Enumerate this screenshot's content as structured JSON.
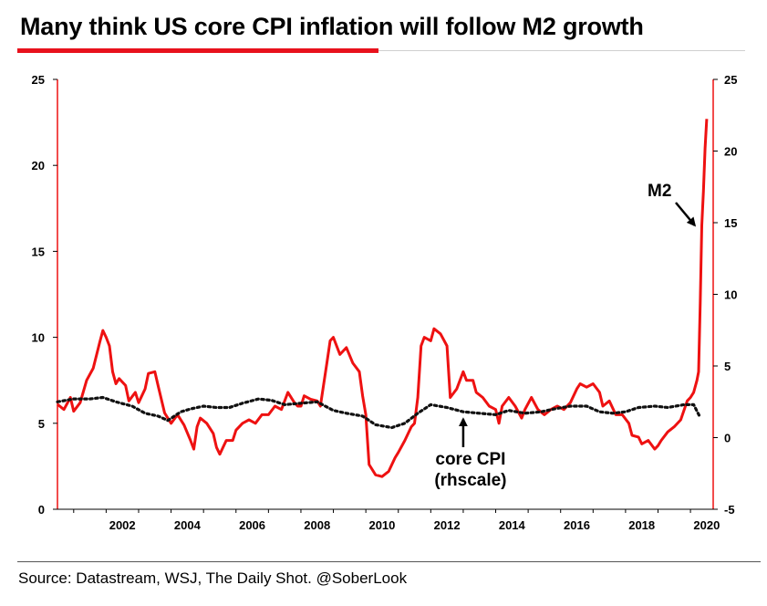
{
  "header": {
    "title": "Many think US core CPI inflation will follow M2 growth"
  },
  "footer": {
    "source": "Source: Datastream, WSJ, The Daily Shot. @SoberLook"
  },
  "colors": {
    "m2": "#ee1111",
    "cpi": "#111111",
    "title_accent": "#e8111c",
    "axis_left": "#ee1111",
    "axis_right": "#ee1111"
  },
  "chart_data": {
    "type": "line",
    "title": "Many think US core CPI inflation will follow M2 growth",
    "x_ticks": [
      "2002",
      "2004",
      "2006",
      "2008",
      "2010",
      "2012",
      "2014",
      "2016",
      "2018",
      "2020"
    ],
    "y_left_ticks": [
      "0",
      "5",
      "10",
      "15",
      "20",
      "25"
    ],
    "y_right_ticks": [
      "-5",
      "0",
      "5",
      "10",
      "15",
      "20",
      "25"
    ],
    "xlim": [
      2000.5,
      2020.7
    ],
    "ylim_left": [
      0,
      25
    ],
    "ylim_right": [
      -5,
      25
    ],
    "grid": false,
    "annotations": [
      {
        "text": "M2",
        "points_to_series": "M2",
        "at": [
          2020.3,
          16.3
        ]
      },
      {
        "line1": "core CPI",
        "line2": "(rhscale)",
        "points_to_series": "core CPI",
        "at": [
          2013.0,
          1.8
        ]
      }
    ],
    "series": [
      {
        "name": "M2",
        "axis": "left",
        "style": "solid",
        "points": [
          [
            2000.5,
            6.1
          ],
          [
            2000.7,
            5.8
          ],
          [
            2000.9,
            6.5
          ],
          [
            2001.0,
            5.7
          ],
          [
            2001.2,
            6.2
          ],
          [
            2001.4,
            7.5
          ],
          [
            2001.6,
            8.2
          ],
          [
            2001.8,
            9.7
          ],
          [
            2001.9,
            10.4
          ],
          [
            2002.0,
            10.0
          ],
          [
            2002.1,
            9.5
          ],
          [
            2002.2,
            8.0
          ],
          [
            2002.3,
            7.3
          ],
          [
            2002.4,
            7.6
          ],
          [
            2002.6,
            7.2
          ],
          [
            2002.7,
            6.3
          ],
          [
            2002.9,
            6.8
          ],
          [
            2003.0,
            6.2
          ],
          [
            2003.2,
            7.0
          ],
          [
            2003.3,
            7.9
          ],
          [
            2003.5,
            8.0
          ],
          [
            2003.6,
            7.2
          ],
          [
            2003.8,
            5.6
          ],
          [
            2004.0,
            5.0
          ],
          [
            2004.2,
            5.5
          ],
          [
            2004.4,
            4.9
          ],
          [
            2004.6,
            4.0
          ],
          [
            2004.7,
            3.5
          ],
          [
            2004.8,
            4.8
          ],
          [
            2004.9,
            5.3
          ],
          [
            2005.1,
            5.0
          ],
          [
            2005.3,
            4.4
          ],
          [
            2005.4,
            3.6
          ],
          [
            2005.5,
            3.2
          ],
          [
            2005.6,
            3.6
          ],
          [
            2005.7,
            4.0
          ],
          [
            2005.9,
            4.0
          ],
          [
            2006.0,
            4.6
          ],
          [
            2006.2,
            5.0
          ],
          [
            2006.4,
            5.2
          ],
          [
            2006.6,
            5.0
          ],
          [
            2006.8,
            5.5
          ],
          [
            2007.0,
            5.5
          ],
          [
            2007.2,
            6.0
          ],
          [
            2007.4,
            5.8
          ],
          [
            2007.6,
            6.8
          ],
          [
            2007.8,
            6.2
          ],
          [
            2007.9,
            6.0
          ],
          [
            2008.0,
            6.0
          ],
          [
            2008.1,
            6.6
          ],
          [
            2008.3,
            6.4
          ],
          [
            2008.5,
            6.3
          ],
          [
            2008.6,
            6.0
          ],
          [
            2008.8,
            8.5
          ],
          [
            2008.9,
            9.8
          ],
          [
            2009.0,
            10.0
          ],
          [
            2009.2,
            9.0
          ],
          [
            2009.4,
            9.4
          ],
          [
            2009.6,
            8.5
          ],
          [
            2009.8,
            8.0
          ],
          [
            2009.9,
            6.6
          ],
          [
            2010.0,
            5.5
          ],
          [
            2010.1,
            2.6
          ],
          [
            2010.3,
            2.0
          ],
          [
            2010.5,
            1.9
          ],
          [
            2010.7,
            2.2
          ],
          [
            2010.9,
            3.0
          ],
          [
            2011.0,
            3.3
          ],
          [
            2011.2,
            4.0
          ],
          [
            2011.4,
            4.8
          ],
          [
            2011.5,
            5.0
          ],
          [
            2011.6,
            6.5
          ],
          [
            2011.7,
            9.5
          ],
          [
            2011.8,
            10.0
          ],
          [
            2012.0,
            9.8
          ],
          [
            2012.1,
            10.5
          ],
          [
            2012.3,
            10.2
          ],
          [
            2012.5,
            9.5
          ],
          [
            2012.6,
            6.5
          ],
          [
            2012.8,
            7.0
          ],
          [
            2013.0,
            8.0
          ],
          [
            2013.1,
            7.5
          ],
          [
            2013.3,
            7.5
          ],
          [
            2013.4,
            6.8
          ],
          [
            2013.6,
            6.5
          ],
          [
            2013.8,
            6.0
          ],
          [
            2014.0,
            5.8
          ],
          [
            2014.1,
            5.0
          ],
          [
            2014.2,
            6.0
          ],
          [
            2014.4,
            6.5
          ],
          [
            2014.6,
            6.0
          ],
          [
            2014.8,
            5.3
          ],
          [
            2014.9,
            5.8
          ],
          [
            2015.1,
            6.5
          ],
          [
            2015.3,
            5.8
          ],
          [
            2015.5,
            5.5
          ],
          [
            2015.7,
            5.8
          ],
          [
            2015.9,
            6.0
          ],
          [
            2016.1,
            5.8
          ],
          [
            2016.3,
            6.2
          ],
          [
            2016.5,
            7.0
          ],
          [
            2016.6,
            7.3
          ],
          [
            2016.8,
            7.1
          ],
          [
            2017.0,
            7.3
          ],
          [
            2017.2,
            6.8
          ],
          [
            2017.3,
            6.0
          ],
          [
            2017.5,
            6.3
          ],
          [
            2017.7,
            5.5
          ],
          [
            2017.9,
            5.5
          ],
          [
            2018.1,
            5.0
          ],
          [
            2018.2,
            4.3
          ],
          [
            2018.4,
            4.2
          ],
          [
            2018.5,
            3.8
          ],
          [
            2018.7,
            4.0
          ],
          [
            2018.9,
            3.5
          ],
          [
            2019.0,
            3.7
          ],
          [
            2019.1,
            4.0
          ],
          [
            2019.3,
            4.5
          ],
          [
            2019.5,
            4.8
          ],
          [
            2019.7,
            5.2
          ],
          [
            2019.9,
            6.3
          ],
          [
            2020.0,
            6.5
          ],
          [
            2020.1,
            6.8
          ],
          [
            2020.2,
            7.5
          ],
          [
            2020.25,
            8.0
          ],
          [
            2020.3,
            12.0
          ],
          [
            2020.35,
            16.5
          ],
          [
            2020.4,
            18.5
          ],
          [
            2020.45,
            21.0
          ],
          [
            2020.5,
            22.7
          ]
        ]
      },
      {
        "name": "core CPI",
        "axis": "right",
        "style": "dotted",
        "points": [
          [
            2000.5,
            2.5
          ],
          [
            2001.0,
            2.7
          ],
          [
            2001.5,
            2.7
          ],
          [
            2001.9,
            2.8
          ],
          [
            2002.3,
            2.5
          ],
          [
            2002.8,
            2.2
          ],
          [
            2003.2,
            1.7
          ],
          [
            2003.6,
            1.5
          ],
          [
            2003.9,
            1.2
          ],
          [
            2004.3,
            1.8
          ],
          [
            2004.6,
            2.0
          ],
          [
            2005.0,
            2.2
          ],
          [
            2005.4,
            2.1
          ],
          [
            2005.8,
            2.1
          ],
          [
            2006.2,
            2.4
          ],
          [
            2006.7,
            2.7
          ],
          [
            2007.1,
            2.6
          ],
          [
            2007.5,
            2.3
          ],
          [
            2008.0,
            2.4
          ],
          [
            2008.5,
            2.5
          ],
          [
            2009.0,
            1.9
          ],
          [
            2009.4,
            1.7
          ],
          [
            2009.9,
            1.5
          ],
          [
            2010.3,
            0.9
          ],
          [
            2010.8,
            0.7
          ],
          [
            2011.2,
            1.0
          ],
          [
            2011.6,
            1.7
          ],
          [
            2012.0,
            2.3
          ],
          [
            2012.5,
            2.1
          ],
          [
            2013.0,
            1.8
          ],
          [
            2013.5,
            1.7
          ],
          [
            2014.0,
            1.6
          ],
          [
            2014.4,
            1.9
          ],
          [
            2014.9,
            1.7
          ],
          [
            2015.4,
            1.8
          ],
          [
            2015.8,
            2.0
          ],
          [
            2016.3,
            2.2
          ],
          [
            2016.8,
            2.2
          ],
          [
            2017.2,
            1.8
          ],
          [
            2017.6,
            1.7
          ],
          [
            2018.0,
            1.8
          ],
          [
            2018.4,
            2.1
          ],
          [
            2018.9,
            2.2
          ],
          [
            2019.3,
            2.1
          ],
          [
            2019.8,
            2.3
          ],
          [
            2020.1,
            2.3
          ],
          [
            2020.3,
            1.4
          ]
        ]
      }
    ]
  }
}
